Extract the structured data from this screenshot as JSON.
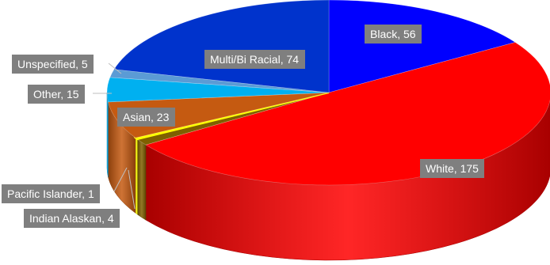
{
  "chart_data": {
    "type": "pie",
    "style": "3d",
    "title": "",
    "slices": [
      {
        "label": "Black",
        "value": 56,
        "color": "#0000ff",
        "side": "#00009e"
      },
      {
        "label": "White",
        "value": 175,
        "color": "#ff0000",
        "side": "#a80000"
      },
      {
        "label": "Indian Alaskan",
        "value": 4,
        "color": "#7f6000",
        "side": "#5c4500"
      },
      {
        "label": "Pacific Islander",
        "value": 1,
        "color": "#ffff00",
        "side": "#c9c900"
      },
      {
        "label": "Asian",
        "value": 23,
        "color": "#c55a11",
        "side": "#8a3f0c"
      },
      {
        "label": "Other",
        "value": 15,
        "color": "#00b0f0",
        "side": "#0080b0"
      },
      {
        "label": "Unspecified",
        "value": 5,
        "color": "#5b9bd5",
        "side": "#3d6e99"
      },
      {
        "label": "Multi/Bi Racial",
        "value": 74,
        "color": "#0033cc",
        "side": "#002080"
      }
    ],
    "data_labels": [
      "Black, 56",
      "White, 175",
      "Indian Alaskan, 4",
      "Pacific Islander, 1",
      "Asian, 23",
      "Other, 15",
      "Unspecified, 5",
      "Multi/Bi Racial, 74"
    ]
  }
}
